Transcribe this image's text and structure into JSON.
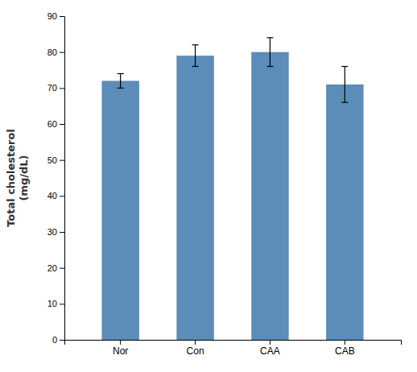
{
  "chart_data": {
    "type": "bar",
    "categories": [
      "Nor",
      "Con",
      "CAA",
      "CAB"
    ],
    "values": [
      72,
      79,
      80,
      71
    ],
    "errors": [
      2.0,
      3.0,
      4.0,
      5.0
    ],
    "color": "#5b8db8",
    "ylabel": "Total cholesterol\n(mg/dL)",
    "ylim": [
      0,
      90
    ],
    "yticks": [
      0,
      10,
      20,
      30,
      40,
      50,
      60,
      70,
      80,
      90
    ],
    "grid": false
  }
}
